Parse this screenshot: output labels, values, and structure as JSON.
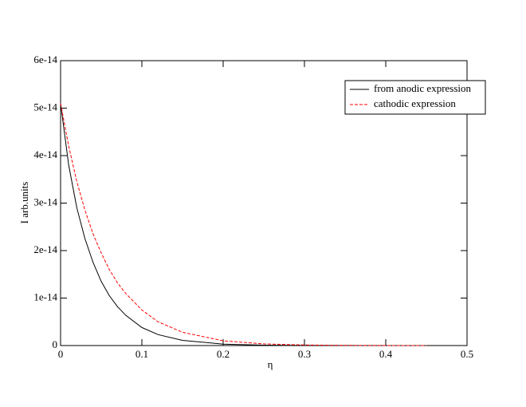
{
  "chart_data": {
    "type": "line",
    "xlabel": "η",
    "ylabel": "I arb.units",
    "x": [
      0,
      0.01,
      0.02,
      0.03,
      0.04,
      0.05,
      0.06,
      0.07,
      0.08,
      0.1,
      0.12,
      0.15,
      0.2,
      0.25,
      0.3,
      0.35,
      0.4,
      0.45
    ],
    "series": [
      {
        "name": "from anodic expression",
        "color": "#000000",
        "dash": false,
        "values": [
          5.1e-14,
          3.8e-14,
          2.9e-14,
          2.25e-14,
          1.75e-14,
          1.35e-14,
          1.05e-14,
          8.2e-15,
          6.4e-15,
          3.8e-15,
          2.3e-15,
          1.1e-15,
          3e-16,
          9e-17,
          2e-17,
          5e-18,
          1e-18,
          0
        ]
      },
      {
        "name": "cathodic expression",
        "color": "#ff0000",
        "dash": true,
        "values": [
          5.1e-14,
          4.2e-14,
          3.45e-14,
          2.85e-14,
          2.35e-14,
          1.95e-14,
          1.6e-14,
          1.32e-14,
          1.1e-14,
          7.5e-15,
          5e-15,
          2.8e-15,
          1e-15,
          3.5e-16,
          1.2e-16,
          4e-17,
          1e-17,
          3e-18
        ]
      }
    ],
    "xlim": [
      0,
      0.5
    ],
    "xticks": [
      0,
      0.1,
      0.2,
      0.3,
      0.4,
      0.5
    ],
    "ylim": [
      0,
      6e-14
    ],
    "yticks": [
      0,
      {
        "value": 1e-14,
        "label": "1e-14"
      },
      {
        "value": 2e-14,
        "label": "2e-14"
      },
      {
        "value": 3e-14,
        "label": "3e-14"
      },
      {
        "value": 4e-14,
        "label": "4e-14"
      },
      {
        "value": 5e-14,
        "label": "5e-14"
      },
      {
        "value": 6e-14,
        "label": "6e-14"
      }
    ],
    "legend": "upper-right"
  }
}
